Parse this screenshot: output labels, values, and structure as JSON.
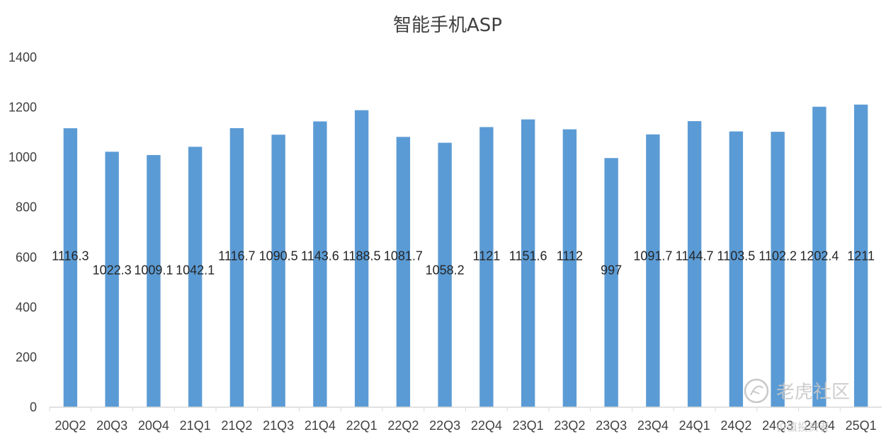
{
  "chart_data": {
    "type": "bar",
    "title": "智能手机ASP",
    "xlabel": "",
    "ylabel": "",
    "ylim": [
      0,
      1400
    ],
    "yticks": [
      0,
      200,
      400,
      600,
      800,
      1000,
      1200,
      1400
    ],
    "grid": false,
    "legend": "none",
    "categories": [
      "20Q2",
      "20Q3",
      "20Q4",
      "21Q1",
      "21Q2",
      "21Q3",
      "21Q4",
      "22Q1",
      "22Q2",
      "22Q3",
      "22Q4",
      "23Q1",
      "23Q2",
      "23Q3",
      "23Q4",
      "24Q1",
      "24Q2",
      "24Q3",
      "24Q4",
      "25Q1"
    ],
    "values": [
      1116.3,
      1022.3,
      1009.1,
      1042.1,
      1116.7,
      1090.5,
      1143.6,
      1188.5,
      1081.7,
      1058.2,
      1121,
      1151.6,
      1112,
      997,
      1091.7,
      1144.7,
      1103.5,
      1102.2,
      1202.4,
      1211
    ],
    "data_labels": [
      "1116.3",
      "1022.3",
      "1009.1",
      "1042.1",
      "1116.7",
      "1090.5",
      "1143.6",
      "1188.5",
      "1081.7",
      "1058.2",
      "1121",
      "1151.6",
      "1112",
      "997",
      "1091.7",
      "1144.7",
      "1103.5",
      "1102.2",
      "1202.4",
      "1211"
    ],
    "colors": {
      "bar": "#5b9bd5",
      "axis": "#d9d9d9",
      "text": "#404040"
    }
  },
  "watermark": {
    "text": "老虎社区",
    "sub": "价值投资者"
  }
}
